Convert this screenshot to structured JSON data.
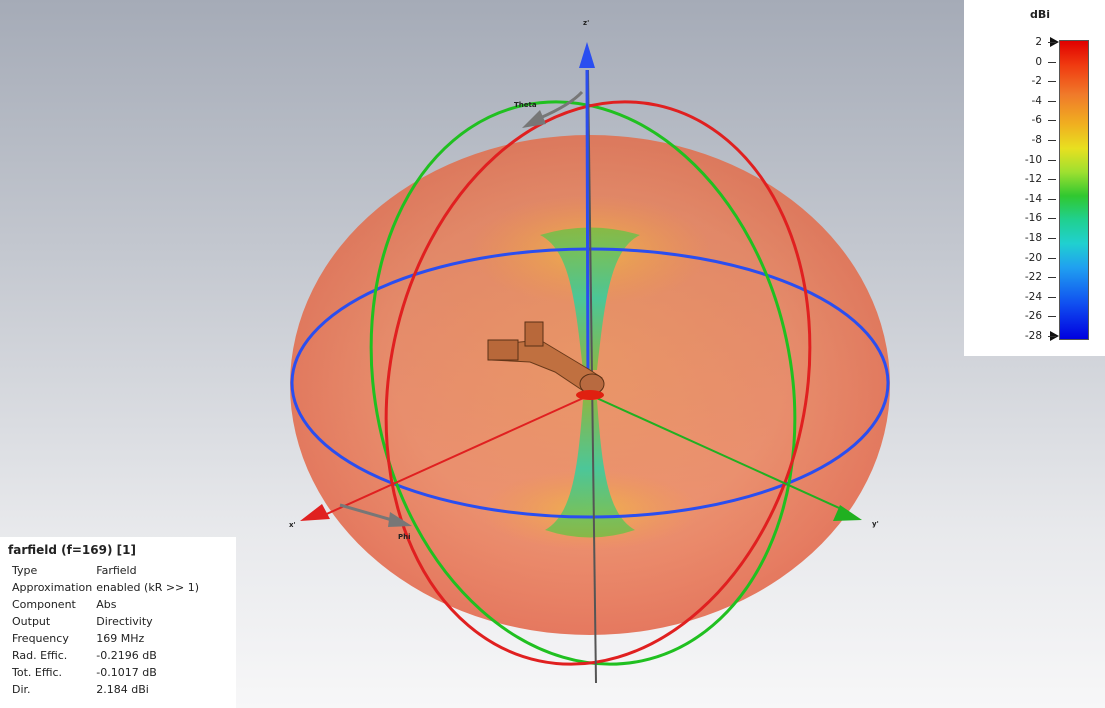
{
  "legend": {
    "unit": "dBi",
    "ticks": [
      "2",
      "0",
      "-2",
      "-4",
      "-6",
      "-8",
      "-10",
      "-12",
      "-14",
      "-16",
      "-18",
      "-20",
      "-22",
      "-24",
      "-26",
      "-28"
    ]
  },
  "axes": {
    "x": "x'",
    "y": "y'",
    "z": "z'",
    "theta": "Theta",
    "phi": "Phi"
  },
  "info": {
    "title": "farfield (f=169) [1]",
    "rows": [
      {
        "key": "Type",
        "value": "Farfield"
      },
      {
        "key": "Approximation",
        "value": "enabled (kR >> 1)"
      },
      {
        "key": "Component",
        "value": "Abs"
      },
      {
        "key": "Output",
        "value": "Directivity"
      },
      {
        "key": "Frequency",
        "value": "169 MHz"
      },
      {
        "key": "Rad. Effic.",
        "value": "-0.2196 dB"
      },
      {
        "key": "Tot. Effic.",
        "value": "-0.1017 dB"
      },
      {
        "key": "Dir.",
        "value": "2.184 dBi"
      }
    ]
  },
  "colors": {
    "x_axis": "#e02020",
    "y_axis": "#20b020",
    "z_axis": "#2a4ef0",
    "pattern": "#e8643a"
  }
}
